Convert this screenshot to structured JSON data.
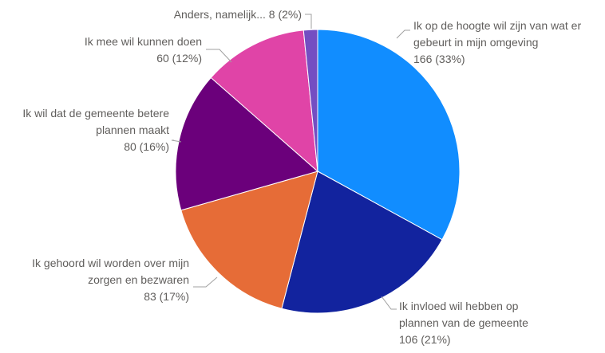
{
  "chart_data": {
    "type": "pie",
    "categories": [
      "Ik op de hoogte wil zijn van wat er gebeurt in mijn omgeving",
      "Ik invloed wil hebben op plannen van de gemeente",
      "Ik gehoord wil worden over mijn zorgen en bezwaren",
      "Ik wil dat de gemeente betere plannen maakt",
      "Ik mee wil kunnen doen",
      "Anders, namelijk..."
    ],
    "values": [
      166,
      106,
      83,
      80,
      60,
      8
    ],
    "value_labels": [
      "166 (33%)",
      "106 (21%)",
      "83 (17%)",
      "80 (16%)",
      "60 (12%)",
      "8 (2%)"
    ],
    "colors": [
      "#118dff",
      "#12239e",
      "#e66c37",
      "#6b007b",
      "#e044a7",
      "#744ec2"
    ]
  }
}
